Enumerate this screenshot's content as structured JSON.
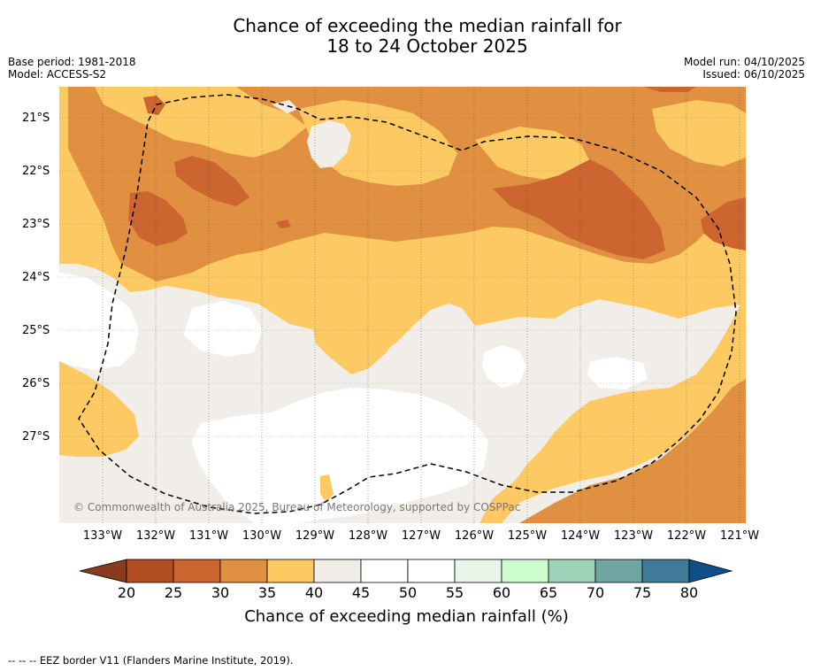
{
  "title": {
    "line1": "Chance of exceeding the median rainfall for",
    "line2": "18 to 24 October 2025"
  },
  "meta": {
    "base_period": "Base period: 1981-2018",
    "model": "Model: ACCESS-S2",
    "model_run": "Model run: 04/10/2025",
    "issued": "Issued: 06/10/2025"
  },
  "axes": {
    "lat_labels": [
      "21°S",
      "22°S",
      "23°S",
      "24°S",
      "25°S",
      "26°S",
      "27°S"
    ],
    "lon_labels": [
      "133°W",
      "132°W",
      "131°W",
      "130°W",
      "129°W",
      "128°W",
      "127°W",
      "126°W",
      "125°W",
      "124°W",
      "123°W",
      "122°W",
      "121°W"
    ]
  },
  "attribution": "© Commonwealth of Australia 2025, Bureau of Meteorology, supported by COSPPac",
  "legend": {
    "title": "Chance of exceeding median rainfall (%)",
    "ticks": [
      "20",
      "25",
      "30",
      "35",
      "40",
      "45",
      "50",
      "55",
      "60",
      "65",
      "70",
      "75",
      "80"
    ],
    "colors": {
      "below_20": "#8b3a1e",
      "c20_25": "#b04e22",
      "c25_30": "#cc6530",
      "c30_35": "#e09040",
      "c35_40": "#fdc962",
      "c40_45": "#f1ede8",
      "c45_55": "#ffffff",
      "c55_60": "#e8f5e8",
      "c60_65": "#ccfccc",
      "c65_70": "#9fd0b8",
      "c70_75": "#6fa6a4",
      "c75_80": "#3f7a98",
      "above_80": "#0f4f8a"
    }
  },
  "footnote": "--  --  -- EEZ border V11 (Flanders Marine Institute, 2019)."
}
